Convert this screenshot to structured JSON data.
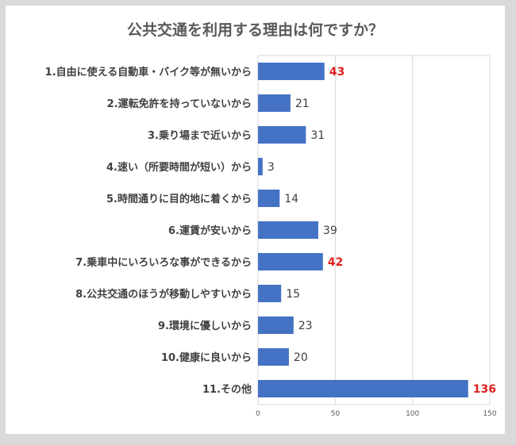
{
  "chart_data": {
    "type": "bar",
    "orientation": "horizontal",
    "title": "公共交通を利用する理由は何ですか？",
    "categories": [
      "1.自由に使える自動車・バイク等が無いから",
      "2.運転免許を持っていないから",
      "3.乗り場まで近いから",
      "4.速い（所要時間が短い）から",
      "5.時間通りに目的地に着くから",
      "6.運賃が安いから",
      "7.乗車中にいろいろな事ができるから",
      "8.公共交通のほうが移動しやすいから",
      "9.環境に優しいから",
      "10.健康に良いから",
      "11.その他"
    ],
    "values": [
      43,
      21,
      31,
      3,
      14,
      39,
      42,
      15,
      23,
      20,
      136
    ],
    "data_labels": [
      "43",
      "21",
      "31",
      "3",
      "14",
      "39",
      "42",
      "15",
      "23",
      "20",
      "136"
    ],
    "highlighted_indices": [
      0,
      6,
      10
    ],
    "xlim": [
      0,
      150
    ],
    "x_ticks": [
      "0",
      "50",
      "100",
      "150"
    ],
    "grid": true,
    "legend": "none",
    "bar_color": "#4472c4",
    "highlight_label_color": "#e02020"
  }
}
